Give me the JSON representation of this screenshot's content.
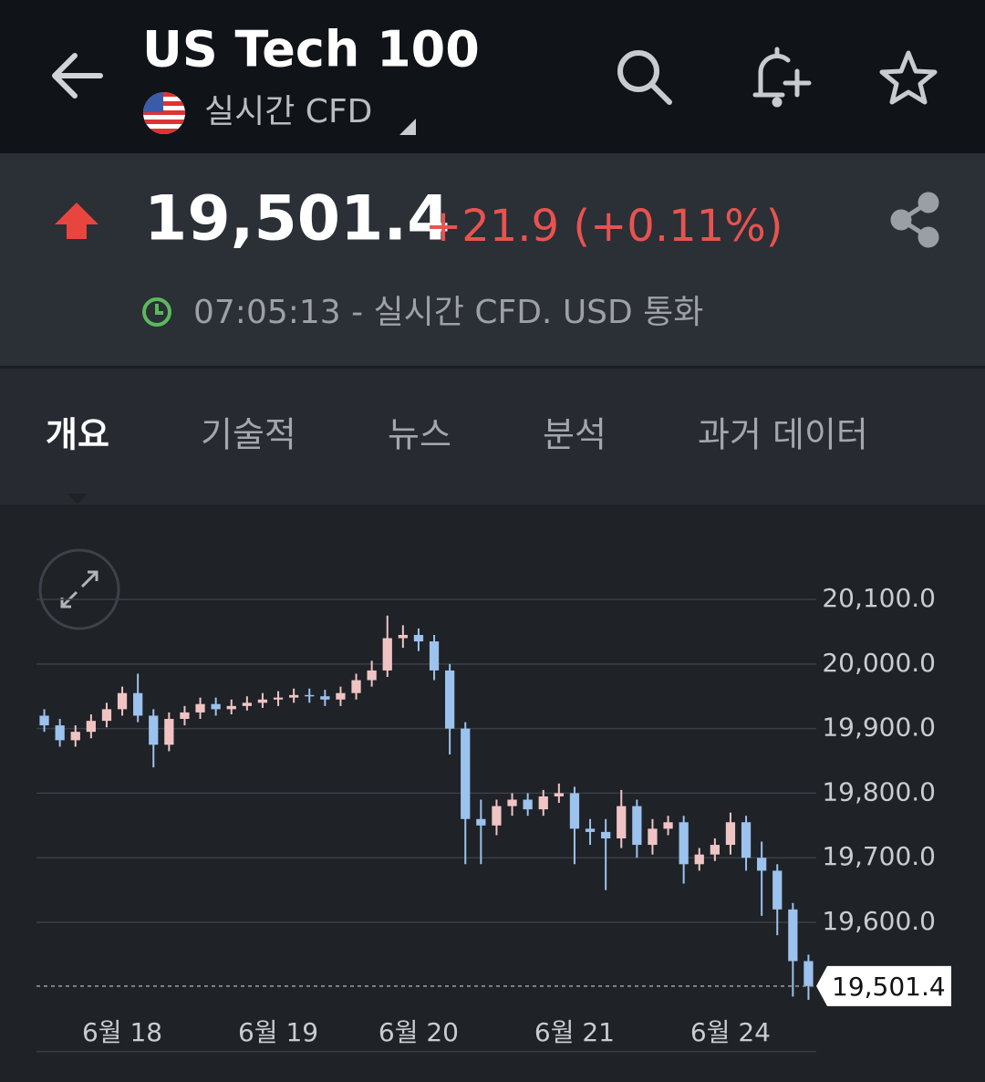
{
  "header": {
    "title": "US Tech 100",
    "subtitle": "실시간 CFD"
  },
  "quote": {
    "price": "19,501.4",
    "change": "+21.9 (+0.11%)",
    "time": "07:05:13 - 실시간 CFD. USD 통화"
  },
  "tabs": [
    "개요",
    "기술적",
    "뉴스",
    "분석",
    "과거 데이터"
  ],
  "chart_data": {
    "type": "candlestick",
    "categories": [
      null,
      null,
      null,
      null,
      null,
      "6월 18",
      null,
      null,
      null,
      null,
      null,
      null,
      null,
      null,
      null,
      "6월 19",
      null,
      null,
      null,
      null,
      null,
      null,
      null,
      null,
      "6월 20",
      null,
      null,
      null,
      null,
      null,
      null,
      null,
      null,
      null,
      "6월 21",
      null,
      null,
      null,
      null,
      null,
      null,
      null,
      null,
      null,
      "6월 24",
      null,
      null,
      null,
      null,
      null
    ],
    "open": [
      19920,
      19905,
      19882,
      19895,
      19912,
      19930,
      19955,
      19920,
      19875,
      19915,
      19925,
      19938,
      19930,
      19935,
      19940,
      19945,
      19948,
      19952,
      19950,
      19945,
      19955,
      19975,
      19990,
      20040,
      20045,
      20035,
      19990,
      19900,
      19760,
      19750,
      19780,
      19790,
      19775,
      19795,
      19800,
      19745,
      19740,
      19730,
      19780,
      19720,
      19745,
      19755,
      19690,
      19705,
      19720,
      19755,
      19700,
      19680,
      19620,
      19540
    ],
    "high": [
      19930,
      19915,
      19905,
      19922,
      19940,
      19965,
      19985,
      19930,
      19925,
      19935,
      19948,
      19948,
      19945,
      19950,
      19955,
      19958,
      19962,
      19962,
      19960,
      19965,
      19985,
      20005,
      20075,
      20060,
      20055,
      20045,
      20000,
      19910,
      19790,
      19790,
      19800,
      19800,
      19805,
      19815,
      19810,
      19760,
      19760,
      19805,
      19790,
      19760,
      19765,
      19765,
      19715,
      19730,
      19770,
      19765,
      19725,
      19690,
      19630,
      19550
    ],
    "low": [
      19895,
      19872,
      19872,
      19885,
      19902,
      19920,
      19910,
      19840,
      19865,
      19905,
      19915,
      19920,
      19922,
      19928,
      19932,
      19935,
      19940,
      19940,
      19935,
      19935,
      19945,
      19965,
      19980,
      20025,
      20020,
      19975,
      19860,
      19690,
      19690,
      19735,
      19765,
      19765,
      19765,
      19785,
      19690,
      19720,
      19650,
      19715,
      19700,
      19705,
      19735,
      19660,
      19680,
      19695,
      19705,
      19680,
      19610,
      19580,
      19485,
      19480
    ],
    "close": [
      19905,
      19882,
      19895,
      19912,
      19930,
      19955,
      19920,
      19875,
      19915,
      19925,
      19938,
      19930,
      19935,
      19940,
      19945,
      19948,
      19952,
      19950,
      19945,
      19955,
      19975,
      19990,
      20040,
      20045,
      20035,
      19990,
      19900,
      19760,
      19750,
      19780,
      19790,
      19775,
      19795,
      19800,
      19745,
      19740,
      19730,
      19780,
      19720,
      19745,
      19755,
      19690,
      19705,
      19720,
      19755,
      19700,
      19680,
      19620,
      19540,
      19501.4
    ],
    "up_color": "#f0c4c4",
    "down_color": "#9cc2ee",
    "ylim": [
      19400,
      20180
    ],
    "yticks": [
      {
        "value": 20100,
        "label": "20,100.0"
      },
      {
        "value": 20000,
        "label": "20,000.0"
      },
      {
        "value": 19900,
        "label": "19,900.0"
      },
      {
        "value": 19800,
        "label": "19,800.0"
      },
      {
        "value": 19700,
        "label": "19,700.0"
      },
      {
        "value": 19600,
        "label": "19,600.0"
      }
    ],
    "last_value": 19501.4,
    "last_label": "19,501.4",
    "grid": true
  }
}
